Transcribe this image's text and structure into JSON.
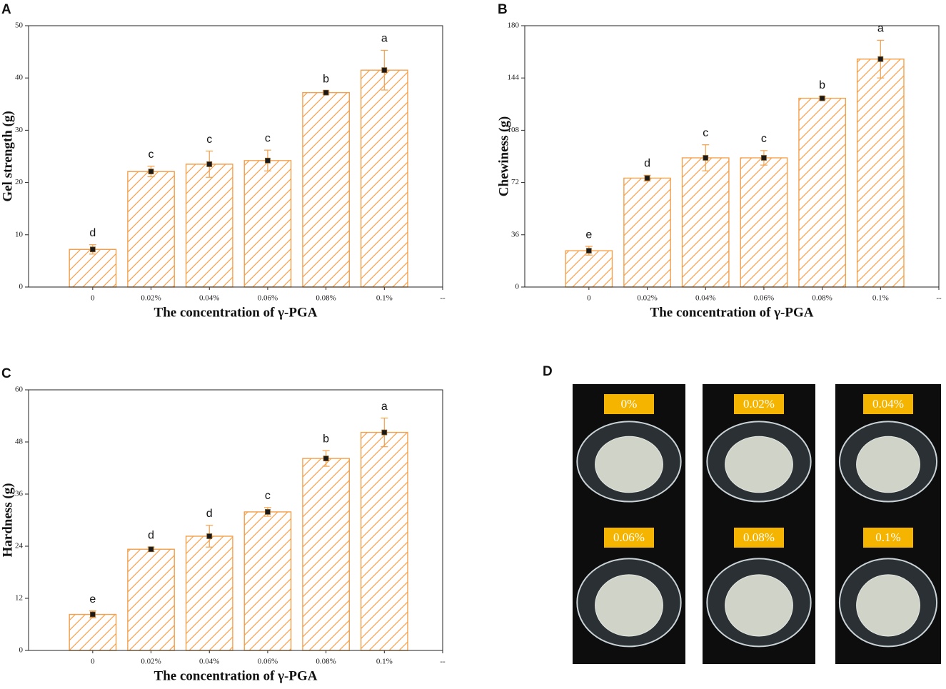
{
  "chart_data": [
    {
      "type": "bar",
      "panel": "A",
      "x_label": "The concentration of γ-PGA",
      "y_label": "Gel strength (g)",
      "categories": [
        "0",
        "0.02%",
        "0.04%",
        "0.06%",
        "0.08%",
        "0.1%",
        "--"
      ],
      "values": [
        7.2,
        22.1,
        23.5,
        24.2,
        37.2,
        41.5,
        null
      ],
      "errors": [
        0.9,
        1.0,
        2.5,
        2.0,
        0.3,
        3.8,
        null
      ],
      "annotations": [
        "d",
        "c",
        "c",
        "c",
        "b",
        "a",
        null
      ],
      "color": "#f5a04a",
      "ylim": [
        0,
        50
      ],
      "yticks": [
        0,
        10,
        20,
        30,
        40,
        50
      ]
    },
    {
      "type": "bar",
      "panel": "B",
      "x_label": "The concentration of γ-PGA",
      "y_label": "Chewiness (g)",
      "categories": [
        "0",
        "0.02%",
        "0.04%",
        "0.06%",
        "0.08%",
        "0.1%",
        "--"
      ],
      "values": [
        25,
        75,
        89,
        89,
        130,
        157,
        null
      ],
      "errors": [
        3,
        2,
        9,
        5,
        1,
        13,
        null
      ],
      "annotations": [
        "e",
        "d",
        "c",
        "c",
        "b",
        "a",
        null
      ],
      "color": "#f5a04a",
      "ylim": [
        0,
        180
      ],
      "yticks": [
        0,
        36,
        72,
        108,
        144,
        180
      ]
    },
    {
      "type": "bar",
      "panel": "C",
      "x_label": "The concentration of γ-PGA",
      "y_label": "Hardness (g)",
      "categories": [
        "0",
        "0.02%",
        "0.04%",
        "0.06%",
        "0.08%",
        "0.1%",
        "--"
      ],
      "values": [
        8.3,
        23.3,
        26.3,
        31.9,
        44.2,
        50.2,
        null
      ],
      "errors": [
        0.8,
        0.5,
        2.5,
        1.0,
        1.8,
        3.3,
        null
      ],
      "annotations": [
        "e",
        "d",
        "d",
        "c",
        "b",
        "a",
        null
      ],
      "color": "#f5a04a",
      "ylim": [
        0,
        60
      ],
      "yticks": [
        0,
        12,
        24,
        36,
        48,
        60
      ]
    }
  ],
  "photo_panel": {
    "panel": "D",
    "labels": [
      "0%",
      "0.02%",
      "0.04%",
      "0.06%",
      "0.08%",
      "0.1%"
    ]
  }
}
